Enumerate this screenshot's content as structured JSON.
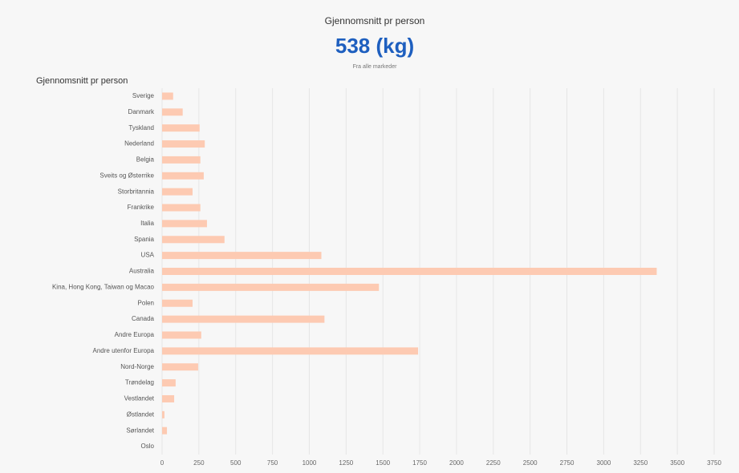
{
  "header": {
    "title": "Gjennomsnitt pr person",
    "value": "538 (kg)",
    "subtitle": "Fra alle markeder"
  },
  "chart_data": {
    "type": "bar",
    "orientation": "horizontal",
    "title": "Gjennomsnitt pr person",
    "categories": [
      "Sverige",
      "Danmark",
      "Tyskland",
      "Nederland",
      "Belgia",
      "Sveits og Østerrike",
      "Storbritannia",
      "Frankrike",
      "Italia",
      "Spania",
      "USA",
      "Australia",
      "Kina, Hong Kong, Taiwan og Macao",
      "Polen",
      "Canada",
      "Andre Europa",
      "Andre utenfor Europa",
      "Nord-Norge",
      "Trøndelag",
      "Vestlandet",
      "Østlandet",
      "Sørlandet",
      "Oslo"
    ],
    "values": [
      75,
      140,
      255,
      290,
      260,
      283,
      207,
      260,
      305,
      424,
      1082,
      3360,
      1473,
      207,
      1103,
      266,
      1739,
      245,
      92,
      82,
      16,
      33,
      0
    ],
    "color": "#fdcab2",
    "xlim": [
      0,
      3750
    ],
    "xticks": [
      0,
      250,
      500,
      750,
      1000,
      1250,
      1500,
      1750,
      2000,
      2250,
      2500,
      2750,
      3000,
      3250,
      3500,
      3750
    ],
    "grid": true
  }
}
